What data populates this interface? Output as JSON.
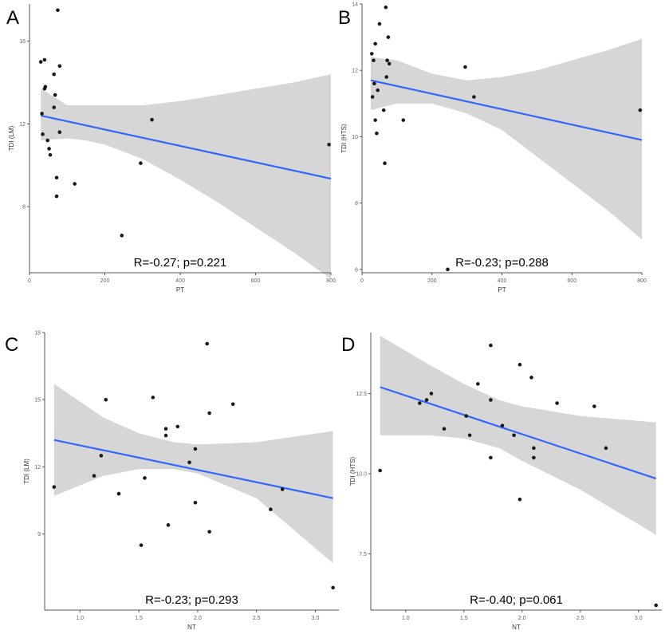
{
  "colors": {
    "fit_line": "#3366ff",
    "band": "#d6d6d6",
    "point": "#1a1a1a",
    "axis": "#555555",
    "tick_text": "#666666"
  },
  "chart_data": [
    {
      "type": "scatter",
      "panel_label": "A",
      "xlabel": "PT",
      "ylabel": "TDI (LM)",
      "annotation": "R=-0.27; p=0.221",
      "xlim": [
        0,
        800
      ],
      "ylim": [
        4.8,
        17.8
      ],
      "xticks": [
        0,
        200,
        400,
        600,
        800
      ],
      "yticks": [
        8,
        12,
        16
      ],
      "points": [
        [
          30,
          15.0
        ],
        [
          40,
          15.1
        ],
        [
          75,
          17.5
        ],
        [
          80,
          14.8
        ],
        [
          40,
          13.7
        ],
        [
          42,
          13.8
        ],
        [
          65,
          14.4
        ],
        [
          68,
          13.4
        ],
        [
          65,
          12.8
        ],
        [
          33,
          12.5
        ],
        [
          35,
          11.5
        ],
        [
          48,
          11.2
        ],
        [
          52,
          10.8
        ],
        [
          55,
          10.5
        ],
        [
          80,
          11.6
        ],
        [
          72,
          9.4
        ],
        [
          120,
          9.1
        ],
        [
          72,
          8.5
        ],
        [
          325,
          12.2
        ],
        [
          295,
          10.1
        ],
        [
          245,
          6.6
        ],
        [
          795,
          11.0
        ]
      ],
      "fit": {
        "x": [
          30,
          800
        ],
        "y": [
          12.4,
          9.35
        ]
      },
      "band": {
        "x": [
          30,
          100,
          150,
          200,
          300,
          400,
          500,
          600,
          700,
          800
        ],
        "upper": [
          13.7,
          12.9,
          12.9,
          12.9,
          12.9,
          13.1,
          13.4,
          13.7,
          14.0,
          14.4
        ],
        "lower": [
          11.2,
          11.3,
          11.2,
          11.0,
          10.3,
          9.3,
          8.2,
          7.0,
          5.8,
          4.5
        ]
      }
    },
    {
      "type": "scatter",
      "panel_label": "B",
      "xlabel": "PT",
      "ylabel": "TDI (HTS)",
      "annotation": "R=-0.23; p=0.288",
      "xlim": [
        0,
        800
      ],
      "ylim": [
        5.9,
        14.0
      ],
      "xticks": [
        0,
        200,
        400,
        600,
        800
      ],
      "yticks": [
        6,
        8,
        10,
        12,
        14
      ],
      "points": [
        [
          68,
          13.9
        ],
        [
          50,
          13.4
        ],
        [
          38,
          12.8
        ],
        [
          75,
          13.0
        ],
        [
          28,
          12.5
        ],
        [
          33,
          12.3
        ],
        [
          72,
          12.3
        ],
        [
          78,
          12.2
        ],
        [
          70,
          11.8
        ],
        [
          35,
          11.6
        ],
        [
          45,
          11.4
        ],
        [
          30,
          11.2
        ],
        [
          62,
          10.8
        ],
        [
          38,
          10.5
        ],
        [
          42,
          10.1
        ],
        [
          118,
          10.5
        ],
        [
          65,
          9.2
        ],
        [
          295,
          12.1
        ],
        [
          320,
          11.2
        ],
        [
          245,
          6.0
        ],
        [
          795,
          10.8
        ]
      ],
      "fit": {
        "x": [
          25,
          800
        ],
        "y": [
          11.7,
          9.9
        ]
      },
      "band": {
        "x": [
          25,
          100,
          150,
          200,
          300,
          400,
          500,
          600,
          700,
          800
        ],
        "upper": [
          12.4,
          12.3,
          12.1,
          11.9,
          11.7,
          11.8,
          12.0,
          12.3,
          12.6,
          12.95
        ],
        "lower": [
          10.8,
          11.0,
          11.0,
          11.0,
          10.7,
          10.2,
          9.4,
          8.6,
          7.8,
          6.9
        ]
      }
    },
    {
      "type": "scatter",
      "panel_label": "C",
      "xlabel": "NT",
      "ylabel": "TDI (LM)",
      "annotation": "R=-0.23; p=0.293",
      "xlim": [
        0.7,
        3.2
      ],
      "ylim": [
        5.6,
        18.0
      ],
      "xticks": [
        1.0,
        1.5,
        2.0,
        2.5,
        3.0
      ],
      "yticks": [
        9,
        12,
        15,
        18
      ],
      "ytick_labels": [
        "9",
        "12",
        "15",
        "18"
      ],
      "xtick_labels": [
        "1.0",
        "1.5",
        "2.0",
        "2.5",
        "3.0"
      ],
      "points": [
        [
          0.78,
          11.1
        ],
        [
          1.12,
          11.6
        ],
        [
          1.18,
          12.5
        ],
        [
          1.22,
          15.0
        ],
        [
          1.33,
          10.8
        ],
        [
          1.52,
          8.5
        ],
        [
          1.55,
          11.5
        ],
        [
          1.62,
          15.1
        ],
        [
          1.73,
          13.7
        ],
        [
          1.73,
          13.4
        ],
        [
          1.75,
          9.4
        ],
        [
          1.83,
          13.8
        ],
        [
          1.93,
          12.2
        ],
        [
          1.98,
          12.8
        ],
        [
          1.98,
          10.4
        ],
        [
          2.08,
          17.5
        ],
        [
          2.1,
          14.4
        ],
        [
          2.1,
          9.1
        ],
        [
          2.3,
          14.8
        ],
        [
          2.62,
          10.1
        ],
        [
          2.72,
          11.0
        ],
        [
          3.15,
          6.6
        ]
      ],
      "fit": {
        "x": [
          0.78,
          3.15
        ],
        "y": [
          13.2,
          10.6
        ]
      },
      "band": {
        "x": [
          0.78,
          1.2,
          1.5,
          1.8,
          2.0,
          2.5,
          3.15
        ],
        "upper": [
          15.7,
          14.2,
          13.5,
          13.1,
          13.0,
          13.1,
          13.6
        ],
        "lower": [
          10.7,
          11.6,
          11.9,
          11.9,
          11.7,
          10.6,
          7.7
        ]
      }
    },
    {
      "type": "scatter",
      "panel_label": "D",
      "xlabel": "NT",
      "ylabel": "TDI (HTS)",
      "annotation": "R=-0.40; p=0.061",
      "xlim": [
        0.7,
        3.2
      ],
      "ylim": [
        5.75,
        14.4
      ],
      "xticks": [
        1.0,
        1.5,
        2.0,
        2.5,
        3.0
      ],
      "yticks": [
        7.5,
        10.0,
        12.5
      ],
      "ytick_labels": [
        "7.5",
        "10.0",
        "12.5"
      ],
      "xtick_labels": [
        "1.0",
        "1.5",
        "2.0",
        "2.5",
        "3.0"
      ],
      "points": [
        [
          0.78,
          10.1
        ],
        [
          1.12,
          12.2
        ],
        [
          1.18,
          12.3
        ],
        [
          1.22,
          12.5
        ],
        [
          1.33,
          11.4
        ],
        [
          1.52,
          11.8
        ],
        [
          1.55,
          11.2
        ],
        [
          1.62,
          12.8
        ],
        [
          1.73,
          14.0
        ],
        [
          1.73,
          12.3
        ],
        [
          1.73,
          10.5
        ],
        [
          1.83,
          11.5
        ],
        [
          1.93,
          11.2
        ],
        [
          1.98,
          13.4
        ],
        [
          1.98,
          9.2
        ],
        [
          2.08,
          13.0
        ],
        [
          2.1,
          10.8
        ],
        [
          2.1,
          10.5
        ],
        [
          2.3,
          12.2
        ],
        [
          2.62,
          12.1
        ],
        [
          2.72,
          10.8
        ],
        [
          3.15,
          5.9
        ]
      ],
      "fit": {
        "x": [
          0.78,
          3.15
        ],
        "y": [
          12.7,
          9.85
        ]
      },
      "band": {
        "x": [
          0.78,
          1.2,
          1.5,
          1.8,
          2.0,
          2.5,
          3.15
        ],
        "upper": [
          14.3,
          13.4,
          12.8,
          12.3,
          12.1,
          11.8,
          11.6
        ],
        "lower": [
          11.2,
          11.2,
          11.1,
          10.8,
          10.4,
          9.5,
          8.1
        ]
      }
    }
  ]
}
